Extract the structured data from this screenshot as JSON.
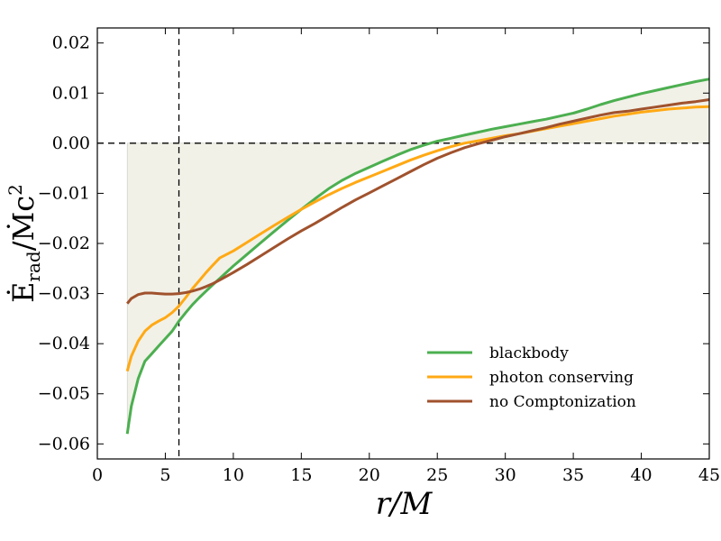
{
  "chart_data": {
    "type": "line",
    "title": "",
    "xlabel": "r/M",
    "ylabel": "Ė_rad/Ṁc²",
    "ylabel_parts": {
      "base": "Ė",
      "sub": "rad",
      "mid": "/Ṁc",
      "sup": "2"
    },
    "xlim": [
      0,
      45
    ],
    "ylim": [
      -0.063,
      0.023
    ],
    "xticks": [
      0,
      5,
      10,
      15,
      20,
      25,
      30,
      35,
      40,
      45
    ],
    "xtick_labels": [
      "0",
      "5",
      "10",
      "15",
      "20",
      "25",
      "30",
      "35",
      "40",
      "45"
    ],
    "yticks": [
      -0.06,
      -0.05,
      -0.04,
      -0.03,
      -0.02,
      -0.01,
      0.0,
      0.01,
      0.02
    ],
    "ytick_labels": [
      "−0.06",
      "−0.05",
      "−0.04",
      "−0.03",
      "−0.02",
      "−0.01",
      "0.00",
      "0.01",
      "0.02"
    ],
    "reference_lines": {
      "horizontal_y": 0.0,
      "vertical_x": 6.0
    },
    "legend_position": "lower-right",
    "x": [
      2.2,
      2.5,
      3,
      3.5,
      4,
      4.5,
      5,
      5.5,
      6,
      6.5,
      7,
      7.5,
      8,
      8.5,
      9,
      10,
      11,
      12,
      13,
      14,
      15,
      16,
      17,
      18,
      19,
      20,
      21,
      22,
      23,
      24,
      25,
      26,
      27,
      28,
      29,
      30,
      31,
      32,
      33,
      34,
      35,
      36,
      37,
      38,
      39,
      40,
      41,
      42,
      43,
      44,
      45
    ],
    "series": [
      {
        "name": "blackbody",
        "color": "#4caf50",
        "values": [
          -0.058,
          -0.0525,
          -0.047,
          -0.0435,
          -0.042,
          -0.0405,
          -0.039,
          -0.0375,
          -0.0355,
          -0.0338,
          -0.0322,
          -0.0308,
          -0.0295,
          -0.0282,
          -0.027,
          -0.0245,
          -0.0222,
          -0.0199,
          -0.0176,
          -0.0154,
          -0.0132,
          -0.0111,
          -0.0091,
          -0.0074,
          -0.006,
          -0.0048,
          -0.0036,
          -0.0024,
          -0.0013,
          -0.0004,
          0.0004,
          0.001,
          0.0016,
          0.0022,
          0.0028,
          0.0033,
          0.0038,
          0.0043,
          0.0048,
          0.0054,
          0.006,
          0.0068,
          0.0077,
          0.0085,
          0.0092,
          0.0099,
          0.0105,
          0.0111,
          0.0117,
          0.0123,
          0.0128
        ]
      },
      {
        "name": "photon conserving",
        "color": "#ffa914",
        "values": [
          -0.0455,
          -0.0425,
          -0.0395,
          -0.0375,
          -0.0363,
          -0.0355,
          -0.0348,
          -0.0338,
          -0.0325,
          -0.0308,
          -0.029,
          -0.0274,
          -0.0258,
          -0.0243,
          -0.0229,
          -0.0215,
          -0.0198,
          -0.0181,
          -0.0164,
          -0.0148,
          -0.0132,
          -0.0117,
          -0.0103,
          -0.009,
          -0.0078,
          -0.0067,
          -0.0056,
          -0.0045,
          -0.0034,
          -0.0024,
          -0.0015,
          -0.0007,
          0.0,
          0.0005,
          0.001,
          0.0015,
          0.0019,
          0.0024,
          0.0029,
          0.0034,
          0.0039,
          0.0044,
          0.0049,
          0.0054,
          0.0058,
          0.0062,
          0.0065,
          0.0068,
          0.007,
          0.0072,
          0.0073
        ]
      },
      {
        "name": "no Comptonization",
        "color": "#a0522d",
        "values": [
          -0.032,
          -0.031,
          -0.0302,
          -0.0299,
          -0.0299,
          -0.03,
          -0.0301,
          -0.0301,
          -0.03,
          -0.0298,
          -0.0295,
          -0.0291,
          -0.0286,
          -0.028,
          -0.0273,
          -0.0258,
          -0.0242,
          -0.0225,
          -0.0208,
          -0.0191,
          -0.0175,
          -0.016,
          -0.0144,
          -0.0128,
          -0.0113,
          -0.0099,
          -0.0085,
          -0.0071,
          -0.0057,
          -0.0043,
          -0.003,
          -0.0019,
          -0.0009,
          -0.0001,
          0.0006,
          0.0013,
          0.0019,
          0.0025,
          0.0031,
          0.0038,
          0.0044,
          0.005,
          0.0056,
          0.0061,
          0.0064,
          0.0068,
          0.0072,
          0.0076,
          0.008,
          0.0083,
          0.0087
        ]
      }
    ],
    "shaded_band": {
      "between": [
        "blackbody",
        "zero"
      ],
      "color": "#e8e8d8"
    }
  }
}
